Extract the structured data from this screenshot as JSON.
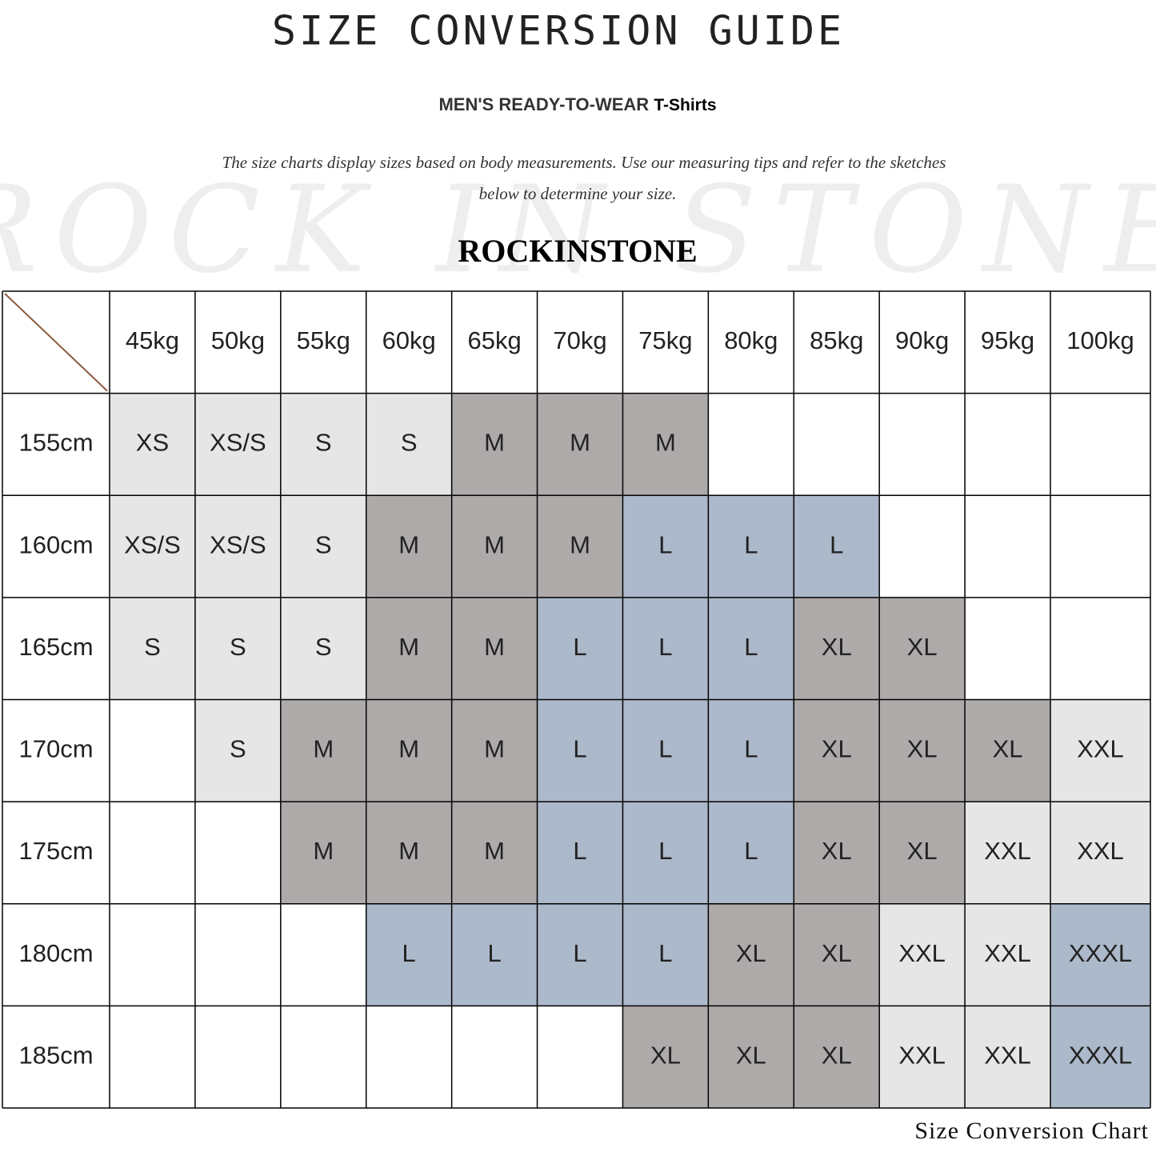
{
  "header": {
    "title": "SIZE CONVERSION GUIDE",
    "subtitle": "MEN'S READY-TO-WEAR",
    "subtitle_product": "T-Shirts",
    "description_lines": [
      "The size charts display sizes based on body measurements. Use our measuring tips and refer to the sketches",
      "below to determine your size."
    ],
    "watermark": "ROCK IN STONE",
    "brand": "ROCKINSTONE"
  },
  "table": {
    "columns": [
      "45kg",
      "50kg",
      "55kg",
      "60kg",
      "65kg",
      "70kg",
      "75kg",
      "80kg",
      "85kg",
      "90kg",
      "95kg",
      "100kg"
    ],
    "rows": [
      {
        "label": "155cm",
        "cells": [
          "XS",
          "XS/S",
          "S",
          "S",
          "M",
          "M",
          "M",
          null,
          null,
          null,
          null,
          null
        ]
      },
      {
        "label": "160cm",
        "cells": [
          "XS/S",
          "XS/S",
          "S",
          "M",
          "M",
          "M",
          "L",
          "L",
          "L",
          null,
          null,
          null
        ]
      },
      {
        "label": "165cm",
        "cells": [
          "S",
          "S",
          "S",
          "M",
          "M",
          "L",
          "L",
          "L",
          "XL",
          "XL",
          null,
          null
        ]
      },
      {
        "label": "170cm",
        "cells": [
          null,
          "S",
          "M",
          "M",
          "M",
          "L",
          "L",
          "L",
          "XL",
          "XL",
          "XL",
          "XXL"
        ]
      },
      {
        "label": "175cm",
        "cells": [
          null,
          null,
          "M",
          "M",
          "M",
          "L",
          "L",
          "L",
          "XL",
          "XL",
          "XXL",
          "XXL"
        ]
      },
      {
        "label": "180cm",
        "cells": [
          null,
          null,
          null,
          "L",
          "L",
          "L",
          "L",
          "XL",
          "XL",
          "XXL",
          "XXL",
          "XXXL"
        ]
      },
      {
        "label": "185cm",
        "cells": [
          null,
          null,
          null,
          null,
          null,
          null,
          "XL",
          "XL",
          "XL",
          "XXL",
          "XXL",
          "XXXL"
        ]
      }
    ],
    "size_colors": {
      "XS": "#e7e6e6",
      "XS/S": "#e7e6e6",
      "S": "#e7e6e6",
      "M": "#aeaaaa",
      "L": "#acb9ca",
      "XL": "#aeaaaa",
      "XXL": "#e7e6e6",
      "XXXL": "#acb9ca"
    }
  },
  "footer": {
    "caption": "Size Conversion Chart"
  }
}
